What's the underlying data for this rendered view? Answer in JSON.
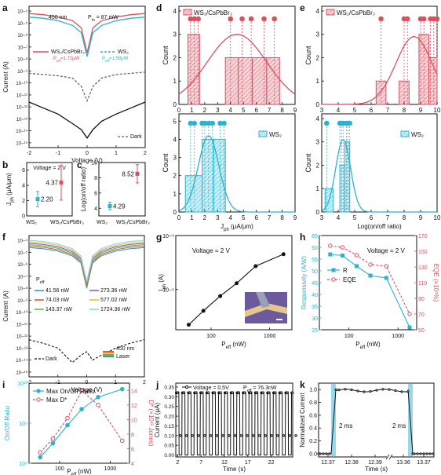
{
  "colors": {
    "pink": "#d9505f",
    "cyan": "#2bb3d0",
    "black": "#111111",
    "gray": "#666666",
    "purple": "#7d6bb0",
    "orange": "#e39b2f",
    "green": "#7abf5c",
    "yellow": "#e8d55a",
    "blue": "#4a87c9",
    "lightblue": "#8fd3ea"
  },
  "chart_data": [
    {
      "id": "a",
      "type": "line",
      "panel_label": "a",
      "xlabel": "Voltage (V)",
      "ylabel": "Current (A)",
      "xlim": [
        -2,
        2
      ],
      "ylog": true,
      "yticks": [
        "10−⁴",
        "10−⁵",
        "10−⁶",
        "10−⁷",
        "10−⁸",
        "10−⁹",
        "10−¹⁰",
        "10−¹¹",
        "10−¹²",
        "10−¹³",
        "10−¹⁴",
        "10−¹⁵"
      ],
      "xticks": [
        "-2",
        "-1",
        "0",
        "1",
        "2"
      ],
      "annotations": [
        "450 nm",
        "P",
        "in",
        "= 87 mW",
        "P",
        "eff",
        "=1.72μW",
        "P",
        "eff",
        "=1.59μW"
      ],
      "series": [
        {
          "name": "WS₂/CsPbBr₃",
          "color": "#d9505f",
          "x": [
            -2,
            -1.5,
            -1,
            -0.5,
            -0.2,
            0,
            0.2,
            0.5,
            1,
            1.5,
            2
          ],
          "y": [
            -4.2,
            -4.3,
            -4.5,
            -4.8,
            -5.4,
            -7.5,
            -5.4,
            -4.8,
            -4.5,
            -4.3,
            -4.2
          ]
        },
        {
          "name": "WS₂",
          "color": "#2bb3d0",
          "x": [
            -2,
            -1.5,
            -1,
            -0.5,
            -0.2,
            0,
            0.2,
            0.5,
            1,
            1.5,
            2
          ],
          "y": [
            -4.5,
            -4.6,
            -4.8,
            -5.2,
            -5.8,
            -7.8,
            -5.8,
            -5.2,
            -4.8,
            -4.6,
            -4.5
          ]
        },
        {
          "name": "",
          "color": "#666666",
          "x": [
            -2,
            -1.5,
            -1,
            -0.5,
            -0.2,
            0,
            0.2,
            0.5,
            1,
            1.5,
            2
          ],
          "y": [
            -9.2,
            -9.3,
            -9.4,
            -9.6,
            -10.3,
            -11.5,
            -10.3,
            -9.6,
            -9.3,
            -9.2,
            -9.1
          ]
        },
        {
          "name": "Dark",
          "color": "#111111",
          "x": [
            -2,
            -1.5,
            -1,
            -0.5,
            -0.2,
            0,
            0.2,
            0.5,
            1,
            1.5,
            2
          ],
          "y": [
            -11.6,
            -12.1,
            -12.6,
            -13.4,
            -13.9,
            -14.6,
            -13.9,
            -13.2,
            -12.6,
            -12.1,
            -11.6
          ]
        }
      ]
    },
    {
      "id": "b",
      "type": "scatter",
      "panel_label": "b",
      "ylabel": "J",
      "ylabel_sub": "ph",
      "ylabel_unit": "(μA/μm)",
      "title": "Voltage = 2 V",
      "categories": [
        "WS₂",
        "WS₂/CsPbBr₃"
      ],
      "yticks": [
        "0",
        "2",
        "4",
        "6"
      ],
      "ylim": [
        0,
        7
      ],
      "series": [
        {
          "values": [
            2.2,
            4.37
          ],
          "errors": [
            1.0,
            2.3
          ],
          "labels": [
            "2.20",
            "4.37"
          ],
          "colors": [
            "#2bb3d0",
            "#d9505f"
          ]
        }
      ]
    },
    {
      "id": "c",
      "type": "scatter",
      "panel_label": "c",
      "ylabel": "Log(on/off ratio)",
      "categories": [
        "WS₂",
        "WS₂/CsPbBr₃"
      ],
      "yticks": [
        "4",
        "6",
        "8",
        "10"
      ],
      "ylim": [
        3,
        10
      ],
      "series": [
        {
          "values": [
            4.29,
            8.52
          ],
          "errors": [
            0.5,
            1.2
          ],
          "labels": [
            "4.29",
            "8.52"
          ],
          "colors": [
            "#2bb3d0",
            "#d9505f"
          ]
        }
      ]
    },
    {
      "id": "d",
      "type": "bar",
      "panel_label": "d",
      "xlabel": "J",
      "xlabel_sub": "ph",
      "xlabel_unit": "(μA/μm)",
      "xticks": [
        "0",
        "1",
        "2",
        "3",
        "4",
        "5",
        "6",
        "7",
        "8",
        "9"
      ],
      "top": {
        "name": "WS₂/CsPbBr₃",
        "ylabel": "Count",
        "yticks": [
          "0",
          "1",
          "2",
          "3",
          "4"
        ],
        "bins": [
          [
            0.7,
            1.6,
            3
          ],
          [
            3.6,
            4.6,
            2
          ],
          [
            4.6,
            5.7,
            2
          ],
          [
            5.7,
            6.8,
            2
          ],
          [
            6.8,
            7.8,
            2
          ]
        ],
        "points": [
          0.9,
          1.2,
          1.5,
          4.0,
          4.9,
          5.6,
          6.6,
          7.4
        ],
        "fit": {
          "mu": 4.5,
          "sigma": 2.3,
          "peak": 3
        }
      },
      "bottom": {
        "name": "WS₂",
        "ylabel": "Count",
        "yticks": [
          "0",
          "1",
          "2",
          "3",
          "4",
          "5"
        ],
        "bins": [
          [
            0.5,
            1.8,
            2
          ],
          [
            1.8,
            2.7,
            4
          ],
          [
            2.7,
            3.6,
            4
          ]
        ],
        "points": [
          0.9,
          1.2,
          1.8,
          2.0,
          2.3,
          2.6,
          3.2,
          3.5
        ],
        "fit": {
          "mu": 2.3,
          "sigma": 0.8,
          "peak": 4.2
        }
      }
    },
    {
      "id": "e",
      "type": "bar",
      "panel_label": "e",
      "xlabel": "Log(on/off ratio)",
      "xticks": [
        "3",
        "4",
        "5",
        "6",
        "7",
        "8",
        "9",
        "10"
      ],
      "top": {
        "name": "WS₂/CsPbBr₃",
        "ylabel": "Count",
        "yticks": [
          "0",
          "1",
          "2",
          "3",
          "4"
        ],
        "bins": [
          [
            6.3,
            6.9,
            1
          ],
          [
            7.7,
            8.3,
            1
          ],
          [
            8.9,
            9.5,
            3
          ],
          [
            9.5,
            10,
            2
          ]
        ],
        "points": [
          6.6,
          8.0,
          8.2,
          9.0,
          9.2,
          9.6,
          9.8,
          10.0
        ],
        "fit": {
          "mu": 8.6,
          "sigma": 1.1,
          "peak": 2.9
        }
      },
      "bottom": {
        "name": "WS₂",
        "ylabel": "Count",
        "yticks": [
          "0",
          "1",
          "2",
          "3",
          "4"
        ],
        "bins": [
          [
            3.2,
            3.7,
            1
          ],
          [
            4.1,
            4.4,
            2
          ],
          [
            4.4,
            4.7,
            3
          ]
        ],
        "points": [
          3.3,
          4.1,
          4.2,
          4.3,
          4.5,
          4.6,
          4.7
        ],
        "fit": {
          "mu": 4.3,
          "sigma": 0.45,
          "peak": 3.1
        }
      }
    },
    {
      "id": "f",
      "type": "line",
      "panel_label": "f",
      "xlabel": "Voltage (V)",
      "ylabel": "Current (A)",
      "xlim": [
        -2,
        2
      ],
      "ylog": true,
      "yticks": [
        "10−⁴",
        "10−⁵",
        "10−⁶",
        "10−⁷",
        "10−⁸",
        "10−⁹",
        "10−¹⁰",
        "10−¹¹",
        "10−¹²",
        "10−¹³",
        "10−¹⁴",
        "10−¹⁵"
      ],
      "xticks": [
        "-2",
        "-1",
        "0",
        "1",
        "2"
      ],
      "legend_title": "P",
      "legend_title_sub": "eff",
      "legend_extra": [
        "450 nm",
        "Laser"
      ],
      "series": [
        {
          "name": "41.56 nW",
          "color": "#2b9fcf",
          "offset": 0
        },
        {
          "name": "74.03 nW",
          "color": "#e05a3a",
          "offset": 0.2
        },
        {
          "name": "143.37 nW",
          "color": "#6bb84a",
          "offset": 0.4
        },
        {
          "name": "273.36 nW",
          "color": "#7d6bb0",
          "offset": 0.6
        },
        {
          "name": "577.02 nW",
          "color": "#f0c040",
          "offset": 0.8
        },
        {
          "name": "1724.36 nW",
          "color": "#8fd3ea",
          "offset": 1.0
        },
        {
          "name": "Dark",
          "color": "#111111",
          "dash": true
        }
      ]
    },
    {
      "id": "g",
      "type": "line",
      "panel_label": "g",
      "xlabel": "P",
      "xlabel_sub": "eff",
      "xlabel_unit": "(nW)",
      "ylabel": "I",
      "ylabel_sub": "ph",
      "ylabel_unit": "(A)",
      "title": "Voltage = 2 V",
      "xlog": true,
      "ylog": true,
      "xticks": [
        "100",
        "1000"
      ],
      "yticks": [
        "10−⁴",
        "10−⁵"
      ],
      "series": [
        {
          "x": [
            41.56,
            74.03,
            143.37,
            273.36,
            577.02,
            1724.36
          ],
          "y": [
            2.2e-06,
            4e-06,
            7.5e-06,
            1.3e-05,
            2.7e-05,
            4.5e-05
          ]
        }
      ]
    },
    {
      "id": "h",
      "type": "line",
      "panel_label": "h",
      "xlabel": "P",
      "xlabel_sub": "eff",
      "xlabel_unit": "(nW)",
      "ylabel": "Responsivity (A/W)",
      "ylabel_right": "EQE (×10⁴%)",
      "title": "Voltage = 2 V",
      "yticks": [
        "25",
        "30",
        "35",
        "40",
        "45",
        "50",
        "55",
        "60",
        "65"
      ],
      "yticks_right": [
        "50",
        "70",
        "90",
        "110",
        "130",
        "150",
        "170"
      ],
      "xticks": [
        "100",
        "1000"
      ],
      "series": [
        {
          "name": "R",
          "color": "#2bb3d0",
          "x": [
            41.56,
            74.03,
            143.37,
            273.36,
            577.02,
            1724.36
          ],
          "y": [
            57,
            56.5,
            52,
            48,
            47,
            26
          ]
        },
        {
          "name": "EQE",
          "color": "#d9505f",
          "dash": true,
          "x": [
            41.56,
            74.03,
            143.37,
            273.36,
            577.02,
            1724.36
          ],
          "y_right": [
            157,
            155,
            145,
            133,
            131,
            70
          ]
        }
      ]
    },
    {
      "id": "i",
      "type": "line",
      "panel_label": "i",
      "xlabel": "P",
      "xlabel_sub": "eff",
      "xlabel_unit": "(nW)",
      "ylabel": "On/Off Ratio",
      "ylabel_right": "D* (×10¹³ Jones)",
      "yticks": [
        "10⁸",
        "10⁹",
        "10¹⁰"
      ],
      "yticks_right": [
        "4",
        "6",
        "8",
        "10",
        "12",
        "14"
      ],
      "xticks": [
        "100",
        "1000"
      ],
      "series": [
        {
          "name": "Max On/Off Ratio",
          "color": "#2bb3d0",
          "x": [
            41.56,
            74.03,
            143.37,
            273.36,
            577.02,
            1724.36
          ],
          "log_y": [
            8.15,
            8.5,
            8.95,
            9.35,
            9.65,
            9.85
          ]
        },
        {
          "name": "Max D*",
          "color": "#d9505f",
          "dash": true,
          "x": [
            41.56,
            74.03,
            143.37,
            273.36,
            577.02,
            1724.36
          ],
          "y_right": [
            5.5,
            7.4,
            10.2,
            14.0,
            12.0,
            7.1
          ]
        }
      ]
    },
    {
      "id": "j",
      "type": "line",
      "panel_label": "j",
      "xlabel": "Time (s)",
      "ylabel": "Current (μA)",
      "xticks": [
        "2",
        "7",
        "12",
        "17",
        "22"
      ],
      "yticks": [
        "0.00",
        "0.05",
        "0.10",
        "0.15",
        "0.20",
        "0.25",
        "0.30",
        "0.35"
      ],
      "annotation": "Voltage = 0.5V",
      "annotation2": "P",
      "annotation2_sub": "eff",
      "annotation2_val": "= 76.3nW",
      "on_level": 0.325,
      "off_level": 0.0,
      "period_s": 1.3,
      "x_start": 1.6,
      "x_end": 26.6
    },
    {
      "id": "k",
      "type": "line",
      "panel_label": "k",
      "xlabel": "Time (s)",
      "ylabel": "Normalized Current",
      "xticks": [
        "12.37",
        "12.38",
        "12.39",
        "13.36",
        "13.37"
      ],
      "yticks": [
        "0.0",
        "0.2",
        "0.4",
        "0.6",
        "0.8",
        "1.0"
      ],
      "labels": [
        "2 ms",
        "2 ms"
      ],
      "on_level": 1.0
    }
  ]
}
